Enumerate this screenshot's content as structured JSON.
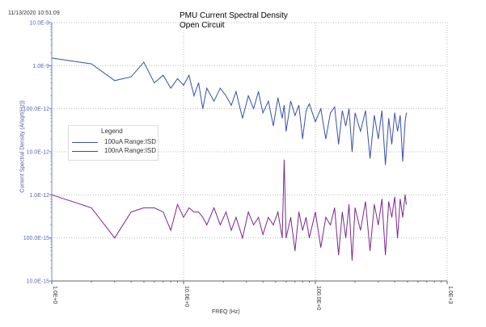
{
  "timestamp": "11/13/2020 10:51:09",
  "chart_data": {
    "type": "line",
    "title": "PMU Current Spectral Density",
    "subtitle": "Open Circuit",
    "xlabel": "FREQ (Hz)",
    "ylabel": "Current Spectral Density (A/sqrt(Hz))",
    "xscale": "log",
    "yscale": "log",
    "xlim": [
      1,
      1000
    ],
    "ylim": [
      1e-14,
      1e-08
    ],
    "grid": "dotted at decades",
    "xticks": [
      "1.0E+0",
      "10.0E+0",
      "100.0E+0",
      "1.0E+3"
    ],
    "yticks": [
      "10.0E-9",
      "1.0E-9",
      "100.0E-12",
      "10.0E-12",
      "1.0E-12",
      "100.0E-15",
      "10.0E-15"
    ],
    "legend": {
      "title": "Legend",
      "placement": "left-center"
    },
    "x": [
      1,
      2,
      3,
      4,
      5,
      6,
      7,
      8,
      9,
      10,
      11,
      12,
      13,
      14,
      15,
      17,
      19,
      21,
      23,
      25,
      28,
      31,
      34,
      37,
      40,
      44,
      48,
      52,
      56,
      58,
      60,
      65,
      70,
      75,
      80,
      85,
      90,
      100,
      110,
      120,
      130,
      140,
      150,
      160,
      170,
      180,
      190,
      200,
      220,
      240,
      260,
      280,
      300,
      320,
      340,
      360,
      380,
      400,
      420,
      440,
      460,
      480,
      490
    ],
    "series": [
      {
        "name": "100uA Range:ISD",
        "color": "#3a4fa8",
        "values": [
          1.5e-09,
          1.1e-09,
          4.5e-10,
          5.5e-10,
          1.2e-09,
          4e-10,
          6e-10,
          3e-10,
          5e-10,
          3.5e-10,
          6e-10,
          2e-10,
          4e-10,
          1e-10,
          3e-10,
          1.5e-10,
          3e-10,
          2e-10,
          1.2e-10,
          2.5e-10,
          6e-11,
          2e-10,
          1e-10,
          2.5e-10,
          8e-11,
          1.5e-10,
          4e-11,
          1.8e-10,
          6e-11,
          1.2e-10,
          3e-11,
          1.5e-10,
          7e-11,
          1.2e-10,
          2e-11,
          9e-11,
          1.3e-10,
          5e-11,
          1e-10,
          2e-11,
          8e-11,
          1.1e-10,
          1.5e-11,
          9e-11,
          4e-11,
          1e-10,
          1e-11,
          8e-11,
          3e-11,
          9e-11,
          7e-12,
          7e-11,
          2e-11,
          9e-11,
          5e-12,
          6e-11,
          1.5e-11,
          8e-11,
          3e-11,
          7e-11,
          6e-12,
          5e-11,
          8e-11
        ]
      },
      {
        "name": "100nA Range:ISD",
        "color": "#7a2a8a",
        "values": [
          1e-12,
          5e-13,
          1e-13,
          4e-13,
          5e-13,
          5e-13,
          4e-13,
          1.5e-13,
          6e-13,
          3e-13,
          5e-13,
          4e-13,
          4e-13,
          3e-13,
          2e-13,
          5e-13,
          2e-13,
          4e-13,
          1.5e-13,
          3e-13,
          1e-13,
          4e-13,
          2e-13,
          3e-13,
          1.2e-13,
          3e-13,
          2e-13,
          4e-13,
          1e-13,
          6.5e-12,
          1e-13,
          3e-13,
          5e-14,
          4e-13,
          1.5e-13,
          3e-13,
          1e-13,
          4e-13,
          6e-14,
          3e-13,
          2e-13,
          5e-13,
          4e-14,
          4e-13,
          1e-13,
          6e-13,
          3e-14,
          5e-13,
          1.5e-13,
          7e-13,
          5e-14,
          6e-13,
          2e-13,
          8e-13,
          4e-14,
          7e-13,
          3e-13,
          9e-13,
          1e-13,
          8e-13,
          3e-13,
          1e-12,
          6e-13
        ]
      }
    ]
  }
}
